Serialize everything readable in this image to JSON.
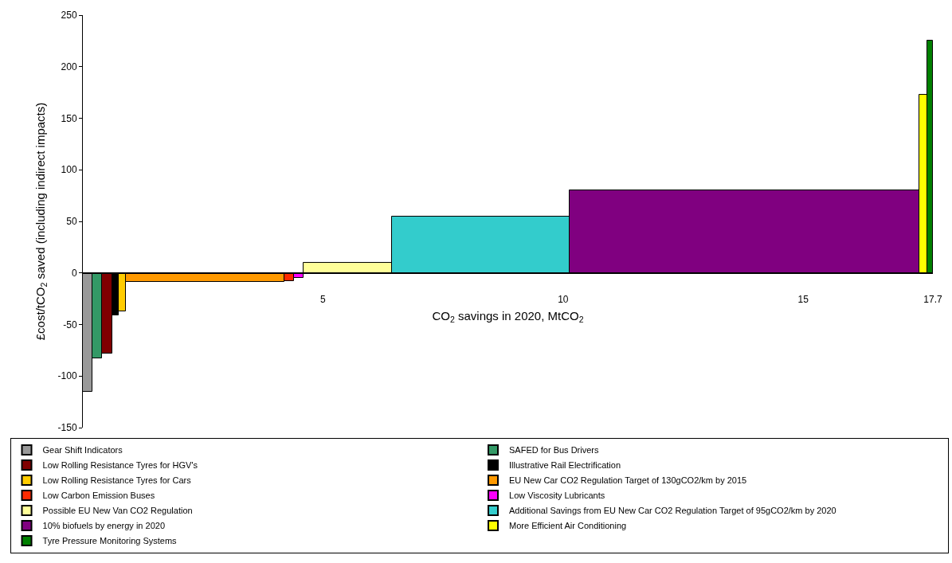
{
  "chart_data": {
    "type": "histogram",
    "xlabel": "CO$_{2}$ savings in 2020, MtCO$_{2}$",
    "ylabel": "£cost/tCO$_{2}$ saved (including indirect impacts)",
    "bins": [
      0,
      0.2,
      0.4,
      0.61,
      0.75,
      0.9,
      4.19,
      4.4,
      4.59,
      6.44,
      10.14,
      17.41,
      17.58,
      17.7
    ],
    "series": [
      {
        "name": "Gear Shift Indicators",
        "color": "#999999",
        "values": [
          -115,
          null,
          null,
          null,
          null,
          null,
          null,
          null,
          null,
          null,
          null,
          null,
          null
        ]
      },
      {
        "name": "SAFED for Bus Drivers",
        "color": "#339966",
        "values": [
          null,
          -83,
          null,
          null,
          null,
          null,
          null,
          null,
          null,
          null,
          null,
          null,
          null
        ]
      },
      {
        "name": "Low Rolling Resistance Tyres for HGV's",
        "color": "#800000",
        "values": [
          null,
          null,
          -78,
          null,
          null,
          null,
          null,
          null,
          null,
          null,
          null,
          null,
          null
        ]
      },
      {
        "name": "Illustrative Rail Electrification",
        "color": "#000000",
        "values": [
          null,
          null,
          null,
          -41,
          null,
          null,
          null,
          null,
          null,
          null,
          null,
          null,
          null
        ]
      },
      {
        "name": "Low Rolling Resistance Tyres for Cars",
        "color": "#ffcc00",
        "values": [
          null,
          null,
          null,
          null,
          -37,
          null,
          null,
          null,
          null,
          null,
          null,
          null,
          null
        ]
      },
      {
        "name": "EU New Car CO2 Regulation Target of 130gCO2/km by 2015",
        "color": "#ff9900",
        "values": [
          null,
          null,
          null,
          null,
          null,
          -9,
          null,
          null,
          null,
          null,
          null,
          null,
          null
        ]
      },
      {
        "name": "Low Carbon Emission Buses",
        "color": "#ff2a00",
        "values": [
          null,
          null,
          null,
          null,
          null,
          null,
          -8,
          null,
          null,
          null,
          null,
          null,
          null
        ]
      },
      {
        "name": "Low Viscosity Lubricants",
        "color": "#ff00ff",
        "values": [
          null,
          null,
          null,
          null,
          null,
          null,
          null,
          -5,
          null,
          null,
          null,
          null,
          null
        ]
      },
      {
        "name": "Possible EU New Van CO2 Regulation",
        "color": "#ffff99",
        "values": [
          null,
          null,
          null,
          null,
          null,
          null,
          null,
          null,
          10,
          null,
          null,
          null,
          null
        ]
      },
      {
        "name": "Additional Savings from EU New Car CO2 Regulation Target of 95gCO2/km by 2020",
        "color": "#33cccc",
        "values": [
          null,
          null,
          null,
          null,
          null,
          null,
          null,
          null,
          null,
          55,
          null,
          null,
          null
        ]
      },
      {
        "name": "10% biofuels by energy in 2020",
        "color": "#800080",
        "values": [
          null,
          null,
          null,
          null,
          null,
          null,
          null,
          null,
          null,
          null,
          80,
          null,
          null
        ]
      },
      {
        "name": "More Efficient Air Conditioning",
        "color": "#ffff00",
        "values": [
          null,
          null,
          null,
          null,
          null,
          null,
          null,
          null,
          null,
          null,
          null,
          173,
          null
        ]
      },
      {
        "name": "Tyre Pressure Monitoring Systems",
        "color": "#008000",
        "values": [
          null,
          null,
          null,
          null,
          null,
          null,
          null,
          null,
          null,
          null,
          null,
          null,
          225
        ]
      }
    ],
    "xlim": [
      0,
      17.7
    ],
    "xticks": [
      5,
      10,
      15,
      17.7
    ],
    "ylim": [
      -150,
      250
    ],
    "yticks": [
      -150,
      -100,
      -50,
      0,
      50,
      100,
      150,
      200,
      250
    ],
    "legend": "bottom"
  }
}
